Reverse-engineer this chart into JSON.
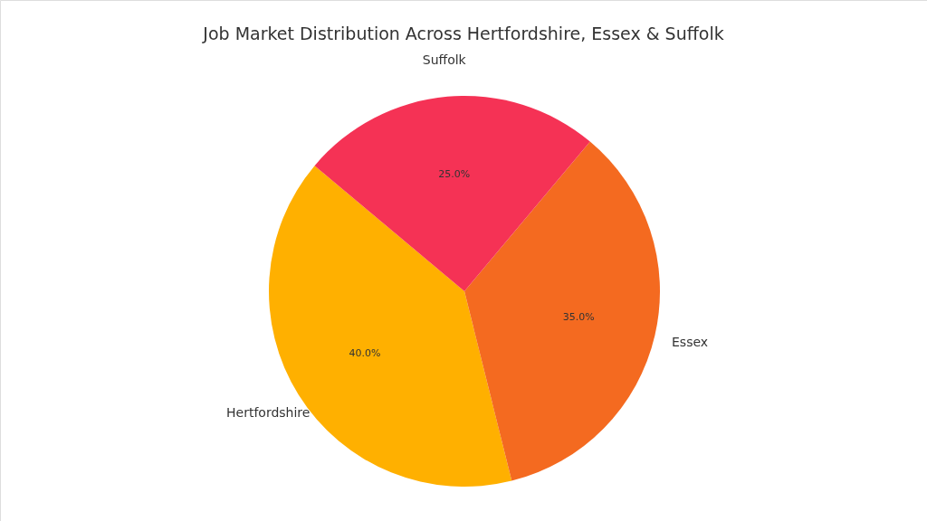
{
  "chart_data": {
    "type": "pie",
    "title": "Job Market Distribution Across Hertfordshire, Essex & Suffolk",
    "categories": [
      "Hertfordshire",
      "Essex",
      "Suffolk"
    ],
    "values": [
      40,
      35,
      25
    ],
    "colors": [
      "#ffb000",
      "#f46a20",
      "#f53255"
    ],
    "value_labels": [
      "40.0%",
      "35.0%",
      "25.0%"
    ]
  }
}
